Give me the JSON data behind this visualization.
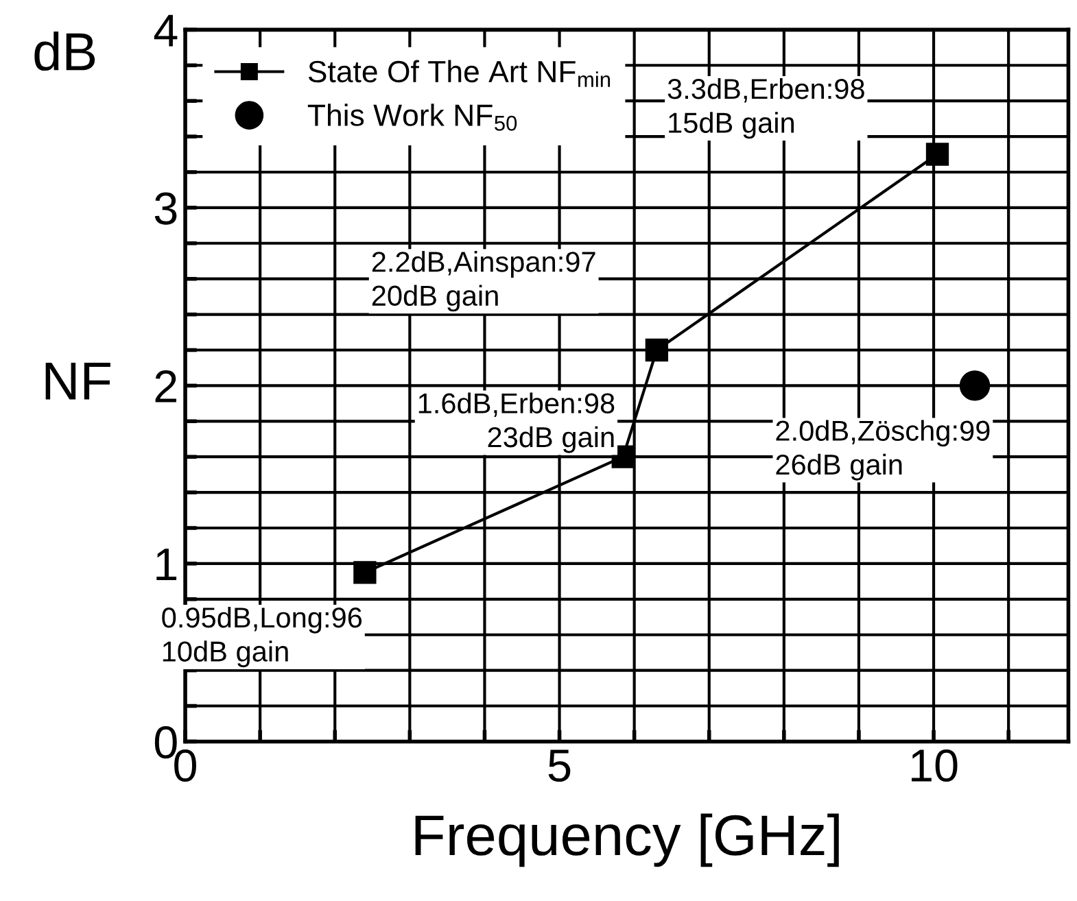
{
  "chart_data": {
    "type": "line",
    "xlabel": "Frequency [GHz]",
    "ylabel": "NF",
    "series": [
      {
        "name": "State Of The Art NF$_{min}$",
        "color": "#000000",
        "marker": "square",
        "x": [
          2.4,
          5.85,
          6.3,
          10.05
        ],
        "values": [
          0.95,
          1.6,
          2.2,
          3.3
        ]
      },
      {
        "name": "This Work NF$_{50}$",
        "color": "#000000",
        "type": "scatter",
        "marker": "circle",
        "x": [
          10.55
        ],
        "values": [
          2.0
        ]
      }
    ],
    "xlim": [
      0,
      11.8
    ],
    "ylim": [
      0,
      4
    ],
    "xticks": [
      0,
      {
        "value": 1,
        "label": null
      },
      {
        "value": 2,
        "label": null
      },
      {
        "value": 3,
        "label": null
      },
      {
        "value": 4,
        "label": null
      },
      5,
      {
        "value": 6,
        "label": null
      },
      {
        "value": 7,
        "label": null
      },
      {
        "value": 8,
        "label": null
      },
      {
        "value": 9,
        "label": null
      },
      10,
      {
        "value": 11,
        "label": null
      }
    ],
    "yticks": [
      0,
      {
        "value": 0.2,
        "label": null
      },
      {
        "value": 0.4,
        "label": null
      },
      {
        "value": 0.6,
        "label": null
      },
      {
        "value": 0.8,
        "label": null
      },
      1,
      {
        "value": 1.2,
        "label": null
      },
      {
        "value": 1.4,
        "label": null
      },
      {
        "value": 1.6,
        "label": null
      },
      {
        "value": 1.8,
        "label": null
      },
      2,
      {
        "value": 2.2,
        "label": null
      },
      {
        "value": 2.4,
        "label": null
      },
      {
        "value": 2.6,
        "label": null
      },
      {
        "value": 2.8,
        "label": null
      },
      3,
      {
        "value": 3.2,
        "label": null
      },
      {
        "value": 3.4,
        "label": null
      },
      {
        "value": 3.6,
        "label": null
      },
      {
        "value": 3.8,
        "label": null
      },
      4
    ],
    "grid": true,
    "legend": "top left",
    "annotations": [
      "dB",
      {
        "text": "0.95dB,Long:96\n10dB gain",
        "x": 2.4,
        "y": 0.95
      },
      {
        "text": "1.6dB,Erben:98\n23dB gain",
        "x": 5.85,
        "y": 1.6
      },
      {
        "text": "2.2dB,Ainspan:97\n20dB gain",
        "x": 6.3,
        "y": 2.2
      },
      {
        "text": "3.3dB,Erben:98\n15dB gain",
        "x": 10.05,
        "y": 3.3
      },
      {
        "text": "2.0dB,Zöschg:99\n26dB gain",
        "x": 10.55,
        "y": 2.0
      }
    ]
  }
}
